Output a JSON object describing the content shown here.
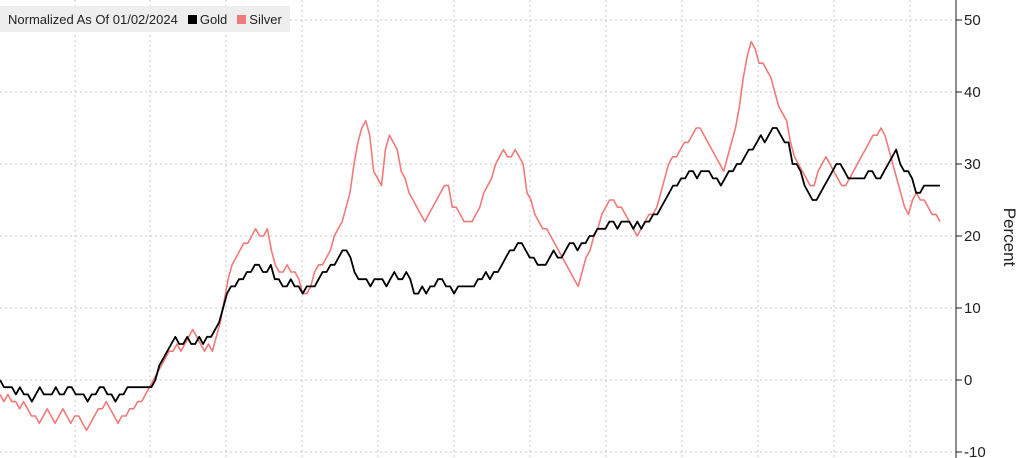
{
  "chart_data": {
    "type": "line",
    "title": "Normalized As Of 01/02/2024",
    "ylabel": "Percent",
    "xlabel": "",
    "ylim": [
      -10,
      50
    ],
    "yticks": [
      -10,
      0,
      10,
      20,
      30,
      40,
      50
    ],
    "grid": true,
    "legend_position": "top-left",
    "series": [
      {
        "name": "Gold",
        "color": "#000000",
        "values": [
          0,
          -1,
          -1,
          -1,
          -2,
          -1,
          -2,
          -2,
          -3,
          -2,
          -1,
          -2,
          -2,
          -2,
          -1,
          -2,
          -2,
          -1,
          -1,
          -2,
          -2,
          -2,
          -3,
          -2,
          -2,
          -1,
          -1,
          -2,
          -2,
          -3,
          -2,
          -2,
          -1,
          -1,
          -1,
          -1,
          -1,
          -1,
          -1,
          0,
          2,
          3,
          4,
          5,
          6,
          5,
          5,
          6,
          5,
          5,
          6,
          5,
          6,
          6,
          7,
          8,
          10,
          12,
          13,
          13,
          14,
          14,
          15,
          15,
          16,
          16,
          15,
          15,
          16,
          14,
          14,
          13,
          13,
          14,
          13,
          13,
          12,
          13,
          13,
          13,
          14,
          15,
          15,
          16,
          16,
          17,
          18,
          18,
          17,
          15,
          14,
          14,
          14,
          13,
          14,
          14,
          14,
          13,
          14,
          15,
          14,
          14,
          15,
          14,
          12,
          12,
          13,
          12,
          13,
          13,
          14,
          14,
          13,
          13,
          12,
          13,
          13,
          13,
          13,
          13,
          14,
          14,
          15,
          14,
          15,
          15,
          16,
          17,
          18,
          18,
          19,
          19,
          18,
          17,
          17,
          16,
          16,
          16,
          17,
          18,
          17,
          17,
          18,
          19,
          19,
          18,
          19,
          19,
          20,
          20,
          21,
          21,
          21,
          22,
          22,
          21,
          22,
          22,
          22,
          21,
          22,
          21,
          22,
          22,
          23,
          23,
          24,
          25,
          26,
          27,
          27,
          28,
          28,
          29,
          29,
          28,
          29,
          29,
          29,
          28,
          28,
          27,
          28,
          29,
          29,
          30,
          30,
          31,
          32,
          32,
          33,
          34,
          33,
          34,
          35,
          35,
          34,
          33,
          33,
          30,
          30,
          29,
          27,
          26,
          25,
          25,
          26,
          27,
          28,
          29,
          30,
          30,
          29,
          28,
          28,
          28,
          28,
          28,
          29,
          29,
          28,
          28,
          29,
          30,
          31,
          32,
          30,
          29,
          29,
          28,
          26,
          26,
          27,
          27,
          27,
          27,
          27
        ],
        "x_range": [
          "01/02/2024",
          "end"
        ]
      },
      {
        "name": "Silver",
        "color": "#f07a7a",
        "values": [
          -2,
          -3,
          -2,
          -3,
          -3,
          -4,
          -3,
          -4,
          -5,
          -5,
          -6,
          -5,
          -4,
          -5,
          -6,
          -5,
          -4,
          -5,
          -6,
          -5,
          -5,
          -6,
          -7,
          -6,
          -5,
          -4,
          -4,
          -3,
          -4,
          -5,
          -6,
          -5,
          -5,
          -4,
          -4,
          -3,
          -3,
          -2,
          -1,
          0,
          1,
          2,
          3,
          4,
          4,
          5,
          4,
          5,
          6,
          7,
          6,
          5,
          4,
          5,
          4,
          6,
          8,
          11,
          14,
          16,
          17,
          18,
          19,
          19,
          20,
          21,
          20,
          20,
          21,
          18,
          16,
          15,
          15,
          16,
          15,
          15,
          14,
          12,
          12,
          13,
          15,
          16,
          16,
          17,
          18,
          20,
          21,
          22,
          24,
          26,
          30,
          33,
          35,
          36,
          34,
          29,
          28,
          27,
          32,
          34,
          33,
          32,
          29,
          28,
          26,
          25,
          24,
          23,
          22,
          23,
          24,
          25,
          26,
          27,
          27,
          24,
          24,
          23,
          22,
          22,
          22,
          23,
          24,
          26,
          27,
          28,
          30,
          31,
          32,
          31,
          31,
          32,
          31,
          30,
          26,
          25,
          23,
          22,
          21,
          21,
          20,
          19,
          18,
          17,
          16,
          15,
          14,
          13,
          15,
          17,
          18,
          20,
          21,
          23,
          24,
          25,
          25,
          24,
          24,
          23,
          22,
          21,
          20,
          21,
          22,
          23,
          23,
          24,
          26,
          28,
          30,
          31,
          31,
          32,
          33,
          33,
          34,
          35,
          35,
          34,
          33,
          32,
          31,
          30,
          29,
          31,
          33,
          35,
          38,
          42,
          45,
          47,
          46,
          44,
          44,
          43,
          42,
          40,
          38,
          37,
          36,
          33,
          31,
          30,
          29,
          28,
          27,
          27,
          29,
          30,
          31,
          30,
          29,
          28,
          27,
          27,
          28,
          29,
          30,
          31,
          32,
          33,
          34,
          34,
          35,
          34,
          32,
          30,
          28,
          26,
          24,
          23,
          25,
          26,
          25,
          25,
          24,
          23,
          23,
          22
        ]
      }
    ]
  }
}
